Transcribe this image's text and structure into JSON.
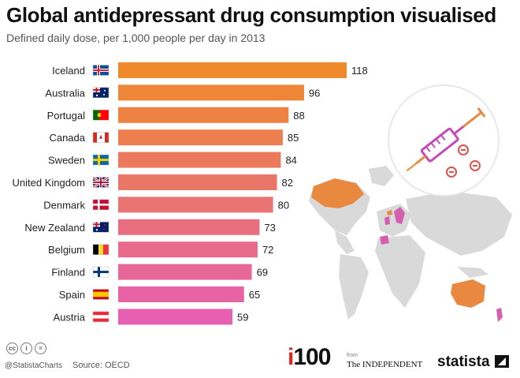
{
  "header": {
    "title": "Global antidepressant drug consumption visualised",
    "subtitle": "Defined daily dose, per 1,000 people per day in 2013"
  },
  "colors": {
    "bar_top": "#ee8a2b",
    "bar_bottom": "#e65fb1",
    "map_land": "#d9d9d9",
    "map_highlight_orange": "#e8893f",
    "map_highlight_pink": "#d45fb1",
    "syringe_purple": "#c64bb7",
    "syringe_orange": "#e8893f"
  },
  "chart_data": {
    "type": "bar",
    "orientation": "horizontal",
    "title": "Global antidepressant drug consumption visualised",
    "subtitle": "Defined daily dose, per 1,000 people per day in 2013",
    "categories": [
      "Iceland",
      "Australia",
      "Portugal",
      "Canada",
      "Sweden",
      "United Kingdom",
      "Denmark",
      "New Zealand",
      "Belgium",
      "Finland",
      "Spain",
      "Austria"
    ],
    "values": [
      118,
      96,
      88,
      85,
      84,
      82,
      80,
      73,
      72,
      69,
      65,
      59
    ],
    "flag_icons": [
      "iceland-flag-icon",
      "australia-flag-icon",
      "portugal-flag-icon",
      "canada-flag-icon",
      "sweden-flag-icon",
      "united-kingdom-flag-icon",
      "denmark-flag-icon",
      "new-zealand-flag-icon",
      "belgium-flag-icon",
      "finland-flag-icon",
      "spain-flag-icon",
      "austria-flag-icon"
    ],
    "xlim": [
      0,
      118
    ],
    "grid": false,
    "legend": "none"
  },
  "footer": {
    "license_icons": [
      "cc-icon",
      "by-icon",
      "nd-icon"
    ],
    "license_glyphs": [
      "cc",
      "i",
      "="
    ],
    "handle": "@StatistaCharts",
    "source": "Source: OECD",
    "i100_prefix": "i",
    "i100_number": "100",
    "from_label": "from",
    "independent": "The INDEPENDENT",
    "statista": "statista"
  }
}
